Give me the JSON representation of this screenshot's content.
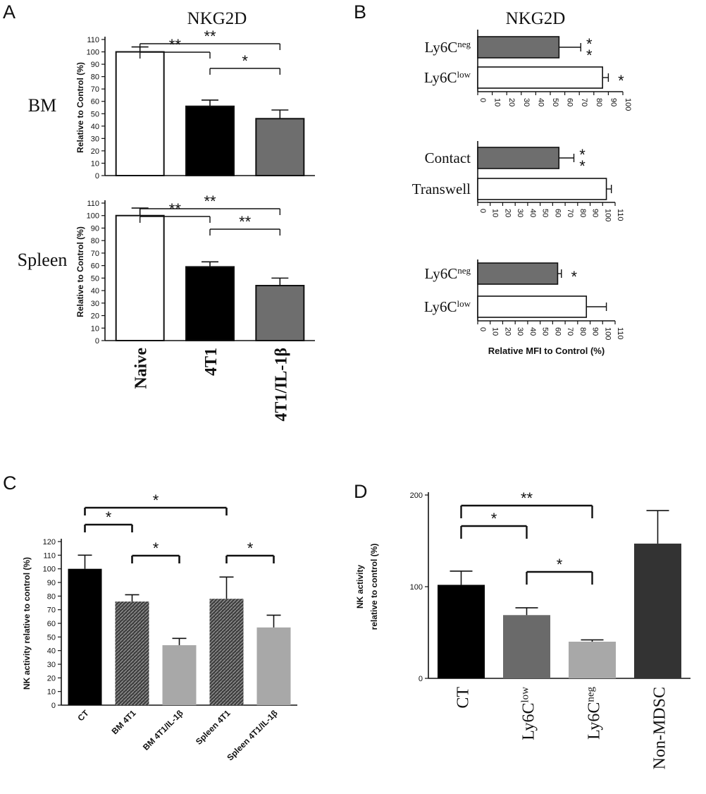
{
  "panels": {
    "A": {
      "letter": "A",
      "title": "NKG2D",
      "row_labels": [
        "BM",
        "Spleen"
      ]
    },
    "B": {
      "letter": "B",
      "title": "NKG2D"
    },
    "C": {
      "letter": "C"
    },
    "D": {
      "letter": "D"
    }
  },
  "chart_data": [
    {
      "id": "A-BM",
      "type": "bar",
      "panel": "A",
      "categories": [
        "Naive",
        "4T1",
        "4T1/IL-1β"
      ],
      "values": [
        100,
        56,
        46
      ],
      "errors": [
        4,
        5,
        7
      ],
      "bar_colors": [
        "#ffffff",
        "#000000",
        "#6e6e6e"
      ],
      "ylabel": "Relative to Control (%)",
      "row_label": "BM",
      "ylim": [
        0,
        110
      ],
      "yticks": [
        0,
        10,
        20,
        30,
        40,
        50,
        60,
        70,
        80,
        90,
        100,
        110
      ],
      "significance": [
        {
          "from": 0,
          "to": 1,
          "label": "**"
        },
        {
          "from": 0,
          "to": 2,
          "label": "**"
        },
        {
          "from": 1,
          "to": 2,
          "label": "*"
        }
      ]
    },
    {
      "id": "A-Spleen",
      "type": "bar",
      "panel": "A",
      "categories": [
        "Naive",
        "4T1",
        "4T1/IL-1β"
      ],
      "values": [
        100,
        59,
        44
      ],
      "errors": [
        6,
        4,
        6
      ],
      "bar_colors": [
        "#ffffff",
        "#000000",
        "#6e6e6e"
      ],
      "ylabel": "Relative to Control (%)",
      "row_label": "Spleen",
      "ylim": [
        0,
        110
      ],
      "yticks": [
        0,
        10,
        20,
        30,
        40,
        50,
        60,
        70,
        80,
        90,
        100,
        110
      ],
      "significance": [
        {
          "from": 0,
          "to": 1,
          "label": "**"
        },
        {
          "from": 0,
          "to": 2,
          "label": "**"
        },
        {
          "from": 1,
          "to": 2,
          "label": "**"
        }
      ]
    },
    {
      "id": "B-1",
      "type": "bar",
      "orientation": "horizontal",
      "panel": "B",
      "categories": [
        {
          "base": "Ly6C",
          "sup": "neg"
        },
        {
          "base": "Ly6C",
          "sup": "low"
        }
      ],
      "values": [
        56,
        86
      ],
      "errors": [
        15,
        4
      ],
      "bar_colors": [
        "#6e6e6e",
        "#ffffff"
      ],
      "xlim": [
        0,
        100
      ],
      "xticks": [
        0,
        10,
        20,
        30,
        40,
        50,
        60,
        70,
        80,
        90,
        100
      ],
      "significance": [
        "**",
        "*"
      ]
    },
    {
      "id": "B-2",
      "type": "bar",
      "orientation": "horizontal",
      "panel": "B",
      "categories": [
        {
          "base": "Contact",
          "sup": ""
        },
        {
          "base": "Transwell",
          "sup": ""
        }
      ],
      "values": [
        65,
        103
      ],
      "errors": [
        12,
        4
      ],
      "bar_colors": [
        "#6e6e6e",
        "#ffffff"
      ],
      "xlim": [
        0,
        110
      ],
      "xticks": [
        0,
        10,
        20,
        30,
        40,
        50,
        60,
        70,
        80,
        90,
        100,
        110
      ],
      "significance": [
        "**",
        ""
      ]
    },
    {
      "id": "B-3",
      "type": "bar",
      "orientation": "horizontal",
      "panel": "B",
      "categories": [
        {
          "base": "Ly6C",
          "sup": "neg"
        },
        {
          "base": "Ly6C",
          "sup": "low"
        }
      ],
      "values": [
        64,
        87
      ],
      "errors": [
        3,
        16
      ],
      "bar_colors": [
        "#6e6e6e",
        "#ffffff"
      ],
      "xlim": [
        0,
        110
      ],
      "xticks": [
        0,
        10,
        20,
        30,
        40,
        50,
        60,
        70,
        80,
        90,
        100,
        110
      ],
      "xlabel": "Relative MFI to Control (%)",
      "significance": [
        "*",
        ""
      ]
    },
    {
      "id": "C",
      "type": "bar",
      "panel": "C",
      "categories": [
        "CT",
        "BM 4T1",
        "BM 4T1/IL-1β",
        "Spleen 4T1",
        "Spleen 4T1/IL-1β"
      ],
      "values": [
        100,
        76,
        44,
        78,
        57
      ],
      "errors": [
        10,
        5,
        5,
        16,
        9
      ],
      "bar_colors": [
        "#000000",
        "#555555",
        "#a8a8a8",
        "#555555",
        "#a8a8a8"
      ],
      "hatched": [
        false,
        true,
        false,
        true,
        false
      ],
      "ylabel": "NK activity relative to control (%)",
      "ylim": [
        0,
        120
      ],
      "yticks": [
        0,
        10,
        20,
        30,
        40,
        50,
        60,
        70,
        80,
        90,
        100,
        110,
        120
      ],
      "significance": [
        {
          "from": 0,
          "to": 1,
          "label": "*"
        },
        {
          "from": 0,
          "to": 3,
          "label": "*"
        },
        {
          "from": 1,
          "to": 2,
          "label": "*"
        },
        {
          "from": 3,
          "to": 4,
          "label": "*"
        }
      ]
    },
    {
      "id": "D",
      "type": "bar",
      "panel": "D",
      "categories": [
        {
          "base": "CT",
          "sup": ""
        },
        {
          "base": "Ly6C",
          "sup": "low"
        },
        {
          "base": "Ly6C",
          "sup": "neg"
        },
        {
          "base": "Non-MDSC",
          "sup": ""
        }
      ],
      "values": [
        102,
        69,
        40,
        147
      ],
      "errors": [
        15,
        8,
        2,
        36
      ],
      "bar_colors": [
        "#000000",
        "#6a6a6a",
        "#a8a8a8",
        "#333333"
      ],
      "ylabel_lines": [
        "NK activity",
        "relative to control (%)"
      ],
      "ylim": [
        0,
        200
      ],
      "yticks": [
        0,
        100,
        200
      ],
      "significance": [
        {
          "from": 0,
          "to": 1,
          "label": "*"
        },
        {
          "from": 0,
          "to": 2,
          "label": "**"
        },
        {
          "from": 1,
          "to": 2,
          "label": "*"
        }
      ]
    }
  ]
}
